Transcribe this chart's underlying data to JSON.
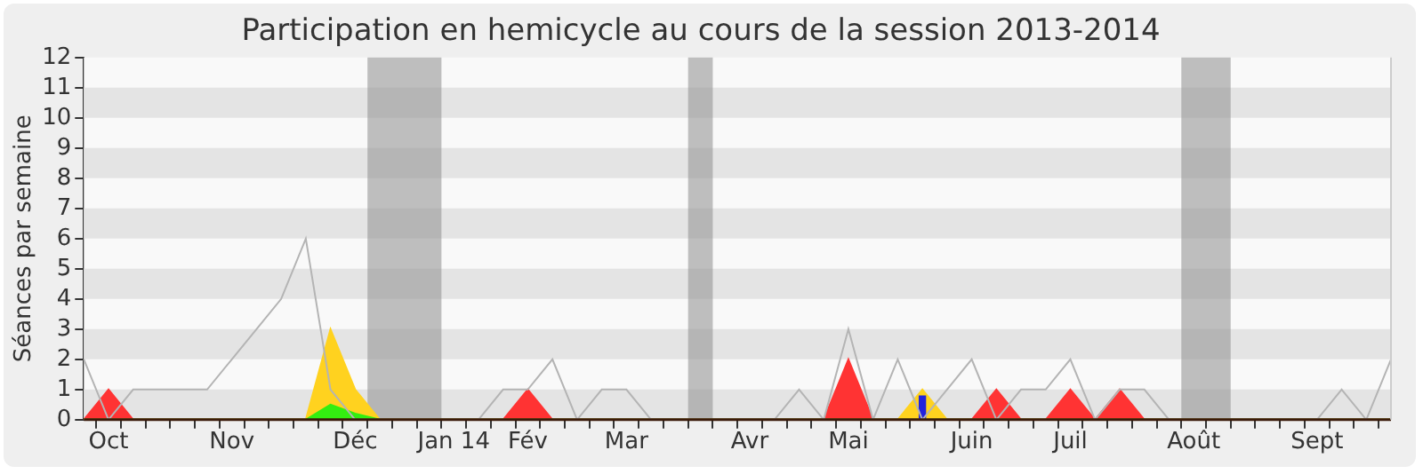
{
  "chart_data": {
    "type": "area",
    "title": "Participation en hemicycle au cours de la session 2013-2014",
    "ylabel": "Séances par semaine",
    "categories": [
      null,
      "Oct",
      null,
      null,
      null,
      null,
      "Nov",
      null,
      null,
      null,
      null,
      "Déc",
      null,
      null,
      null,
      "Jan 14",
      null,
      null,
      "Fév",
      null,
      null,
      null,
      "Mar",
      null,
      null,
      null,
      null,
      "Avr",
      null,
      null,
      null,
      "Mai",
      null,
      null,
      null,
      null,
      "Juin",
      null,
      null,
      null,
      "Juil",
      null,
      null,
      null,
      null,
      "Août",
      null,
      null,
      null,
      null,
      "Sept",
      null,
      null,
      null
    ],
    "series": [
      {
        "type": "line",
        "color": "#b4b4b4",
        "values": [
          2,
          0,
          1,
          1,
          1,
          1,
          2,
          3,
          4,
          6,
          1,
          0,
          0,
          0,
          0,
          0,
          0,
          1,
          1,
          2,
          0,
          1,
          1,
          0,
          0,
          0,
          0,
          0,
          0,
          1,
          0,
          3,
          0,
          2,
          0,
          1,
          2,
          0,
          1,
          1,
          2,
          0,
          1,
          1,
          0,
          0,
          0,
          0,
          0,
          0,
          0,
          1,
          0,
          2
        ]
      },
      {
        "type": "bar",
        "color": "#2222dd",
        "values": [
          0,
          0,
          0,
          0,
          0,
          0,
          0,
          0,
          0,
          0,
          0,
          0,
          0,
          0,
          0,
          0,
          0,
          0,
          0,
          0,
          0,
          0,
          0,
          0,
          0,
          0,
          0,
          0,
          0,
          0,
          0,
          0,
          0,
          0,
          0.8,
          0,
          0,
          0,
          0,
          0,
          0,
          0,
          0,
          0,
          0,
          0,
          0,
          0,
          0,
          0,
          0,
          0,
          0,
          0
        ]
      },
      {
        "color": "#33ee11",
        "values": [
          0,
          0,
          0,
          0,
          0,
          0,
          0,
          0,
          0,
          0,
          0.5,
          0.2,
          0,
          0,
          0,
          0,
          0,
          0,
          0,
          0,
          0,
          0,
          0,
          0,
          0,
          0,
          0,
          0,
          0,
          0,
          0,
          0,
          0,
          0,
          0,
          0,
          0,
          0,
          0,
          0,
          0,
          0,
          0,
          0,
          0,
          0,
          0,
          0,
          0,
          0,
          0,
          0,
          0,
          0
        ]
      },
      {
        "color": "#ffd21f",
        "values": [
          0,
          0,
          0,
          0,
          0,
          0,
          0,
          0,
          0,
          0,
          3,
          1,
          0,
          0,
          0,
          0,
          0,
          0,
          0,
          0,
          0,
          0,
          0,
          0,
          0,
          0,
          0,
          0,
          0,
          0,
          0,
          0,
          0,
          0,
          1,
          0,
          0,
          0,
          0,
          0,
          0,
          0,
          0,
          0,
          0,
          0,
          0,
          0,
          0,
          0,
          0,
          0,
          0,
          0
        ]
      },
      {
        "color": "#ff3333",
        "values": [
          0,
          1,
          0,
          0,
          0,
          0,
          0,
          0,
          0,
          0,
          0,
          0,
          0,
          0,
          0,
          0,
          0,
          0,
          1,
          0,
          0,
          0,
          0,
          0,
          0,
          0,
          0,
          0,
          0,
          0,
          0,
          2,
          0,
          0,
          0,
          0,
          0,
          1,
          0,
          0,
          1,
          0,
          1,
          0,
          0,
          0,
          0,
          0,
          0,
          0,
          0,
          0,
          0,
          0
        ]
      }
    ],
    "ylim": [
      0,
      12
    ],
    "yticks": [
      0,
      1,
      2,
      3,
      4,
      5,
      6,
      7,
      8,
      9,
      10,
      11,
      12
    ],
    "legend": false
  }
}
